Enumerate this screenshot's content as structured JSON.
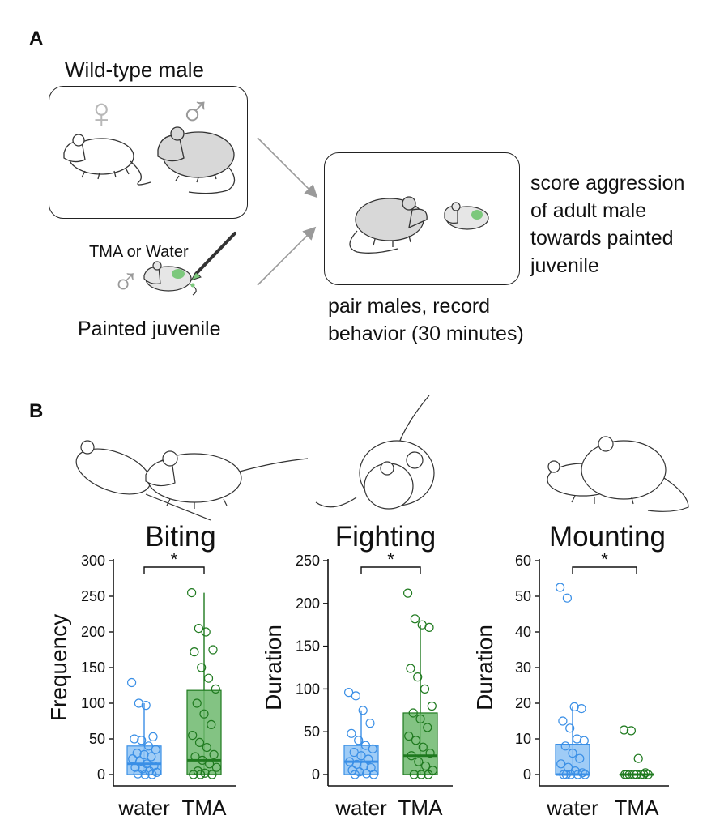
{
  "panel_a": {
    "letter": "A",
    "wildtype_label": "Wild-type male",
    "female_symbol": "♀",
    "male_symbol": "♂",
    "painted_male_symbol": "♂",
    "paint_label": "TMA or Water",
    "painted_label": "Painted juvenile",
    "pair_label_line1": "pair males, record",
    "pair_label_line2": "behavior (30 minutes)",
    "score_line1": "score aggression",
    "score_line2": "of adult male",
    "score_line3": "towards painted",
    "score_line4": "juvenile",
    "paint_color": "#7cc87c"
  },
  "panel_b": {
    "letter": "B"
  },
  "colors": {
    "water": "#3a8fe6",
    "water_fill": "#8ec3f5",
    "tma": "#1f7a1f",
    "tma_fill": "#6db86d"
  },
  "chart_data": [
    {
      "type": "box",
      "title": "Biting",
      "ylabel": "Frequency",
      "categories": [
        "water",
        "TMA"
      ],
      "ylim": [
        0,
        300
      ],
      "yticks": [
        0,
        50,
        100,
        150,
        200,
        250,
        300
      ],
      "significance": "*",
      "series": [
        {
          "category": "water",
          "q1": 0,
          "median": 15,
          "q3": 40,
          "whisker_low": 0,
          "whisker_high": 100,
          "points": [
            129,
            100,
            97,
            53,
            50,
            48,
            40,
            35,
            30,
            28,
            25,
            22,
            18,
            15,
            12,
            10,
            8,
            5,
            3,
            1,
            0,
            0
          ]
        },
        {
          "category": "TMA",
          "q1": 0,
          "median": 20,
          "q3": 118,
          "whisker_low": 0,
          "whisker_high": 255,
          "points": [
            255,
            205,
            200,
            175,
            172,
            150,
            135,
            120,
            100,
            85,
            70,
            55,
            45,
            38,
            28,
            25,
            20,
            15,
            10,
            5,
            2,
            0,
            0,
            0
          ]
        }
      ]
    },
    {
      "type": "box",
      "title": "Fighting",
      "ylabel": "Duration",
      "categories": [
        "water",
        "TMA"
      ],
      "ylim": [
        0,
        250
      ],
      "yticks": [
        0,
        50,
        100,
        150,
        200,
        250
      ],
      "significance": "*",
      "series": [
        {
          "category": "water",
          "q1": 0,
          "median": 15,
          "q3": 34,
          "whisker_low": 0,
          "whisker_high": 75,
          "points": [
            96,
            92,
            75,
            60,
            48,
            40,
            34,
            30,
            26,
            22,
            18,
            15,
            12,
            10,
            8,
            5,
            3,
            1,
            0,
            0
          ]
        },
        {
          "category": "TMA",
          "q1": 0,
          "median": 22,
          "q3": 72,
          "whisker_low": 0,
          "whisker_high": 175,
          "points": [
            212,
            182,
            175,
            172,
            124,
            114,
            100,
            80,
            72,
            65,
            55,
            45,
            40,
            32,
            25,
            22,
            15,
            10,
            5,
            0,
            0,
            0
          ]
        }
      ]
    },
    {
      "type": "box",
      "title": "Mounting",
      "ylabel": "Duration",
      "categories": [
        "water",
        "TMA"
      ],
      "ylim": [
        0,
        60
      ],
      "yticks": [
        0,
        10,
        20,
        30,
        40,
        50,
        60
      ],
      "significance": "*",
      "series": [
        {
          "category": "water",
          "q1": 0,
          "median": 0,
          "q3": 8.5,
          "whisker_low": 0,
          "whisker_high": 19,
          "points": [
            52.5,
            49.5,
            19,
            18.5,
            15,
            13,
            10,
            9.5,
            8,
            6,
            4.5,
            3,
            2,
            1,
            0.5,
            0,
            0,
            0,
            0,
            0
          ]
        },
        {
          "category": "TMA",
          "q1": 0,
          "median": 0,
          "q3": 0,
          "whisker_low": 0,
          "whisker_high": 0,
          "points": [
            12.5,
            12.3,
            4.5,
            0.5,
            0,
            0,
            0,
            0,
            0,
            0,
            0,
            0
          ]
        }
      ]
    }
  ]
}
